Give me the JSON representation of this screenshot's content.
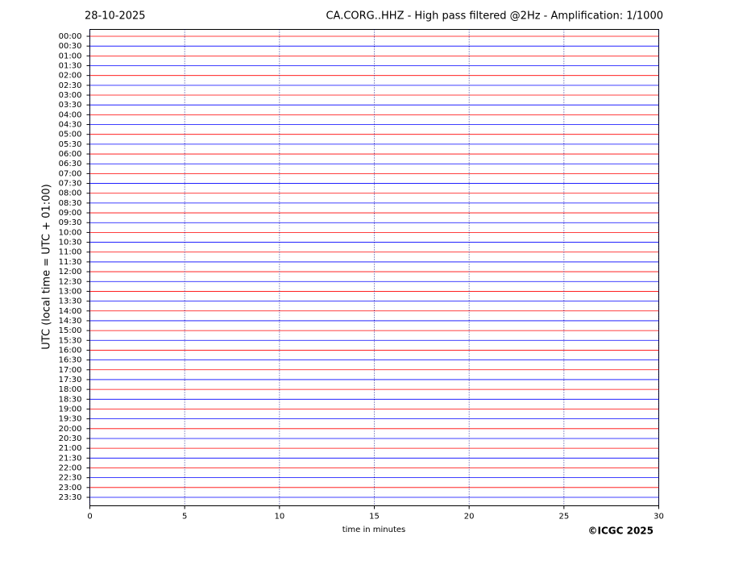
{
  "chart_data": {
    "type": "helicorder",
    "date": "28-10-2025",
    "title": "CA.CORG..HHZ - High pass filtered @2Hz - Amplification: 1/1000",
    "y_label": "UTC (local time = UTC + 01:00)",
    "x_label": "time in minutes",
    "copyright": "©ICGC 2025",
    "categories": [
      "00:00",
      "00:30",
      "01:00",
      "01:30",
      "02:00",
      "02:30",
      "03:00",
      "03:30",
      "04:00",
      "04:30",
      "05:00",
      "05:30",
      "06:00",
      "06:30",
      "07:00",
      "07:30",
      "08:00",
      "08:30",
      "09:00",
      "09:30",
      "10:00",
      "10:30",
      "11:00",
      "11:30",
      "12:00",
      "12:30",
      "13:00",
      "13:30",
      "14:00",
      "14:30",
      "15:00",
      "15:30",
      "16:00",
      "16:30",
      "17:00",
      "17:30",
      "18:00",
      "18:30",
      "19:00",
      "19:30",
      "20:00",
      "20:30",
      "21:00",
      "21:30",
      "22:00",
      "22:30",
      "23:00",
      "23:30"
    ],
    "colors": [
      "#ff0000",
      "#0000ff"
    ],
    "xlim": [
      0,
      30
    ],
    "xticks": [
      0,
      5,
      10,
      15,
      20,
      25,
      30
    ],
    "grid": true
  }
}
